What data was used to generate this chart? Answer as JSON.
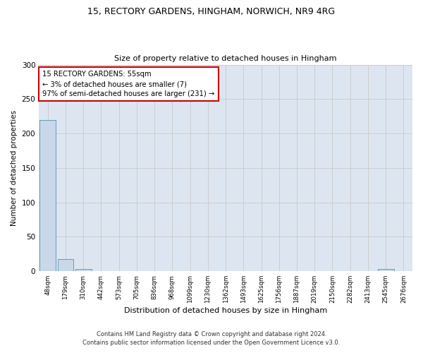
{
  "title1": "15, RECTORY GARDENS, HINGHAM, NORWICH, NR9 4RG",
  "title2": "Size of property relative to detached houses in Hingham",
  "xlabel": "Distribution of detached houses by size in Hingham",
  "ylabel": "Number of detached properties",
  "bin_labels": [
    "48sqm",
    "179sqm",
    "310sqm",
    "442sqm",
    "573sqm",
    "705sqm",
    "836sqm",
    "968sqm",
    "1099sqm",
    "1230sqm",
    "1362sqm",
    "1493sqm",
    "1625sqm",
    "1756sqm",
    "1887sqm",
    "2019sqm",
    "2150sqm",
    "2282sqm",
    "2413sqm",
    "2545sqm",
    "2676sqm"
  ],
  "bar_values": [
    220,
    18,
    3,
    0,
    0,
    0,
    0,
    0,
    0,
    0,
    0,
    0,
    0,
    0,
    0,
    0,
    0,
    0,
    0,
    3,
    0
  ],
  "bar_color": "#c8d8e8",
  "bar_edge_color": "#6699bb",
  "annotation_line1": "15 RECTORY GARDENS: 55sqm",
  "annotation_line2": "← 3% of detached houses are smaller (7)",
  "annotation_line3": "97% of semi-detached houses are larger (231) →",
  "annotation_box_color": "#cc0000",
  "ylim": [
    0,
    300
  ],
  "yticks": [
    0,
    50,
    100,
    150,
    200,
    250,
    300
  ],
  "grid_color": "#cccccc",
  "bg_color": "#dde6f0",
  "footer1": "Contains HM Land Registry data © Crown copyright and database right 2024.",
  "footer2": "Contains public sector information licensed under the Open Government Licence v3.0."
}
